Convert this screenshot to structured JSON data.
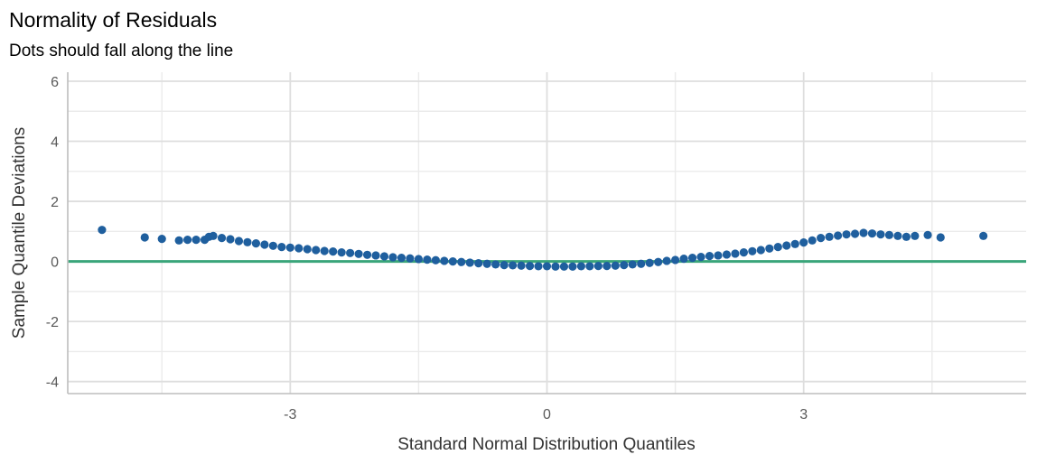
{
  "chart_data": {
    "type": "scatter",
    "title": "Normality of Residuals",
    "subtitle": "Dots should fall along the line",
    "xlabel": "Standard Normal Distribution Quantiles",
    "ylabel": "Sample Quantile Deviations",
    "xlim": [
      -5.6,
      5.6
    ],
    "ylim": [
      -4.4,
      6.3
    ],
    "x_ticks": [
      -3,
      0,
      3
    ],
    "x_tick_labels": [
      "-3",
      "0",
      "3"
    ],
    "x_minor_gridlines": [
      -4.5,
      -1.5,
      1.5,
      4.5
    ],
    "y_ticks": [
      -4,
      -2,
      0,
      2,
      4,
      6
    ],
    "y_tick_labels": [
      "-4",
      "-2",
      "0",
      "2",
      "4",
      "6"
    ],
    "y_minor_gridlines": [
      -3,
      -1,
      1,
      3,
      5
    ],
    "grid": true,
    "reference_line": {
      "y": 0,
      "color": "#3aa57a"
    },
    "point_color": "#1f5f9e",
    "series": [
      {
        "x": [
          -5.2,
          -4.7,
          -4.5,
          -4.3,
          -4.2,
          -4.1,
          -4.0,
          -3.95,
          -3.9,
          -3.8,
          -3.7,
          -3.6,
          -3.5,
          -3.4,
          -3.3,
          -3.2,
          -3.1,
          -3.0,
          -2.9,
          -2.8,
          -2.7,
          -2.6,
          -2.5,
          -2.4,
          -2.3,
          -2.2,
          -2.1,
          -2.0,
          -1.9,
          -1.8,
          -1.7,
          -1.6,
          -1.5,
          -1.4,
          -1.3,
          -1.2,
          -1.1,
          -1.0,
          -0.9,
          -0.8,
          -0.7,
          -0.6,
          -0.5,
          -0.4,
          -0.3,
          -0.2,
          -0.1,
          0.0,
          0.1,
          0.2,
          0.3,
          0.4,
          0.5,
          0.6,
          0.7,
          0.8,
          0.9,
          1.0,
          1.1,
          1.2,
          1.3,
          1.4,
          1.5,
          1.6,
          1.7,
          1.8,
          1.9,
          2.0,
          2.1,
          2.2,
          2.3,
          2.4,
          2.5,
          2.6,
          2.7,
          2.8,
          2.9,
          3.0,
          3.1,
          3.2,
          3.3,
          3.4,
          3.5,
          3.6,
          3.7,
          3.8,
          3.9,
          4.0,
          4.1,
          4.2,
          4.3,
          4.45,
          4.6,
          5.1
        ],
        "y": [
          1.05,
          0.8,
          0.75,
          0.7,
          0.72,
          0.72,
          0.72,
          0.82,
          0.85,
          0.78,
          0.74,
          0.68,
          0.64,
          0.6,
          0.56,
          0.52,
          0.48,
          0.46,
          0.44,
          0.41,
          0.38,
          0.35,
          0.33,
          0.3,
          0.28,
          0.25,
          0.22,
          0.2,
          0.17,
          0.14,
          0.12,
          0.1,
          0.08,
          0.06,
          0.04,
          0.02,
          0.0,
          -0.02,
          -0.04,
          -0.06,
          -0.08,
          -0.1,
          -0.12,
          -0.13,
          -0.14,
          -0.15,
          -0.16,
          -0.16,
          -0.17,
          -0.17,
          -0.17,
          -0.16,
          -0.16,
          -0.15,
          -0.15,
          -0.14,
          -0.12,
          -0.1,
          -0.08,
          -0.05,
          -0.02,
          0.02,
          0.05,
          0.09,
          0.12,
          0.15,
          0.18,
          0.2,
          0.23,
          0.26,
          0.3,
          0.34,
          0.38,
          0.43,
          0.48,
          0.53,
          0.58,
          0.63,
          0.7,
          0.78,
          0.82,
          0.86,
          0.9,
          0.92,
          0.95,
          0.93,
          0.9,
          0.88,
          0.85,
          0.82,
          0.85,
          0.88,
          0.8,
          0.85
        ]
      }
    ]
  }
}
